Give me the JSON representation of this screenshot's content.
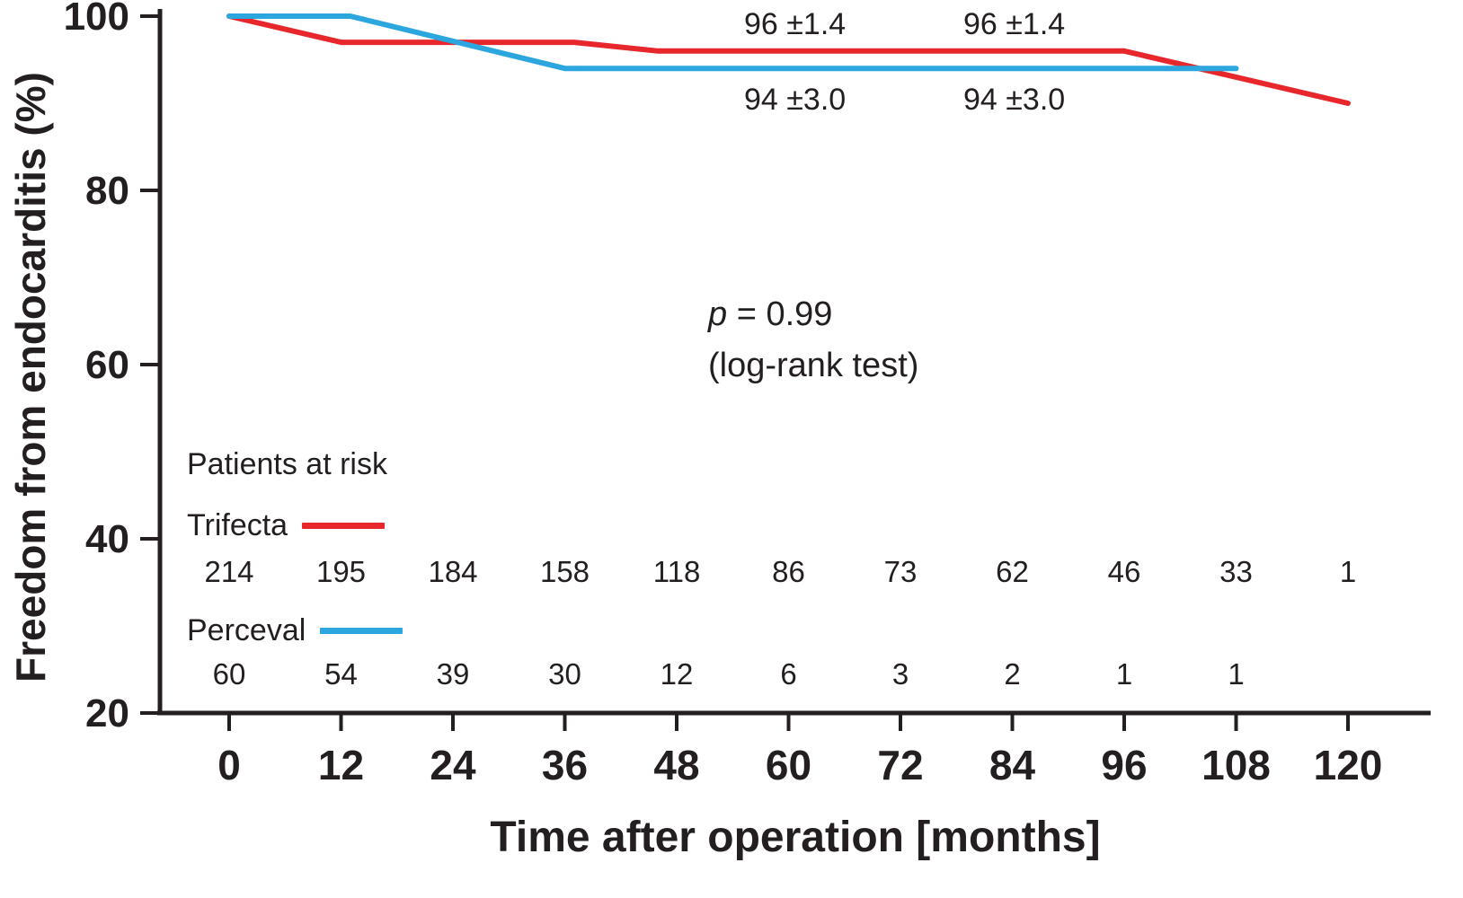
{
  "stats": {
    "p_symbol": "p",
    "p_value": " = 0.99",
    "method": "(log-rank test)"
  },
  "risk_table": {
    "title": "Patients at risk",
    "rows": [
      {
        "label": "Trifecta",
        "color": "#e8272c",
        "counts": [
          214,
          195,
          184,
          158,
          118,
          86,
          73,
          62,
          46,
          33,
          1
        ]
      },
      {
        "label": "Perceval",
        "color": "#2ba6de",
        "counts": [
          60,
          54,
          39,
          30,
          12,
          6,
          3,
          2,
          1,
          1
        ]
      }
    ]
  },
  "chart_data": {
    "type": "line",
    "title": "",
    "xlabel": "Time after operation [months]",
    "ylabel": "Freedom from endocarditis (%)",
    "xlim": [
      0,
      120
    ],
    "ylim": [
      20,
      100
    ],
    "x_ticks": [
      0,
      12,
      24,
      36,
      48,
      60,
      72,
      84,
      96,
      108,
      120
    ],
    "y_ticks": [
      20,
      40,
      60,
      80,
      100
    ],
    "grid": false,
    "legend_position": "inside-left-risk-table",
    "series": [
      {
        "name": "Trifecta",
        "color": "#e8272c",
        "points": [
          [
            0,
            100
          ],
          [
            12,
            97
          ],
          [
            37,
            97
          ],
          [
            46,
            96
          ],
          [
            96,
            96
          ],
          [
            120,
            90
          ]
        ]
      },
      {
        "name": "Perceval",
        "color": "#2ba6de",
        "points": [
          [
            0,
            100
          ],
          [
            13,
            100
          ],
          [
            36,
            94
          ],
          [
            108,
            94
          ]
        ]
      }
    ],
    "annotations": [
      {
        "text": "96 ±1.4",
        "series": "Trifecta",
        "near_month": 60
      },
      {
        "text": "96 ±1.4",
        "series": "Trifecta",
        "near_month": 84
      },
      {
        "text": "94 ±3.0",
        "series": "Perceval",
        "near_month": 60
      },
      {
        "text": "94 ±3.0",
        "series": "Perceval",
        "near_month": 84
      }
    ]
  }
}
